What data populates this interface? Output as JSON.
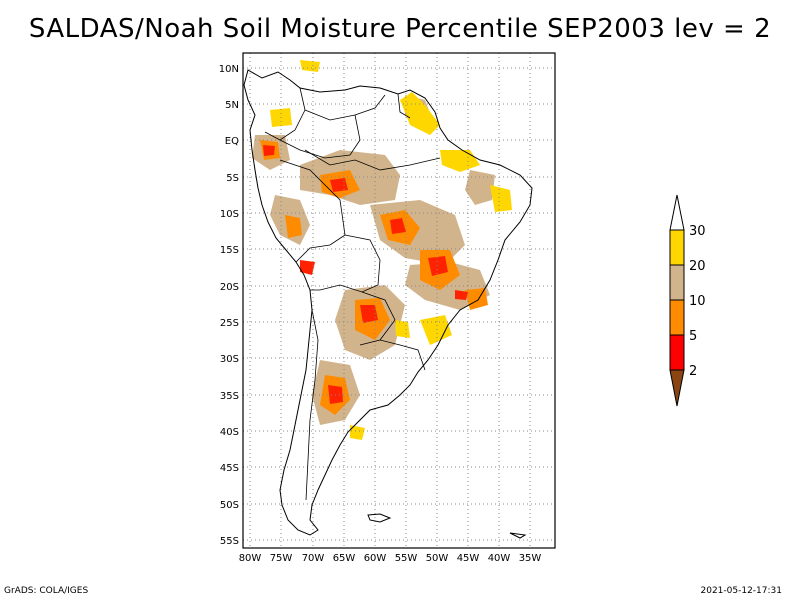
{
  "title": "SALDAS/Noah Soil Moisture Percentile SEP2003 lev = 2",
  "map": {
    "lat_labels": [
      "10N",
      "5N",
      "EQ",
      "5S",
      "10S",
      "15S",
      "20S",
      "25S",
      "30S",
      "35S",
      "40S",
      "45S",
      "50S",
      "55S"
    ],
    "lon_labels": [
      "80W",
      "75W",
      "70W",
      "65W",
      "60W",
      "55W",
      "50W",
      "45W",
      "40W",
      "35W"
    ]
  },
  "legend": {
    "labels": [
      "30",
      "20",
      "10",
      "5",
      "2"
    ],
    "colors": {
      "above30": "#ffffff",
      "20_30": "#ffd700",
      "10_20": "#d2b48c",
      "5_10": "#ff8c00",
      "2_5": "#ff0000",
      "below2": "#8b4513"
    }
  },
  "colors": {
    "dry_red": "#ff2200",
    "dark_red": "#c82000",
    "orange": "#ff8c00",
    "tan": "#d2b48c",
    "yellow": "#ffd700"
  },
  "footer": {
    "left": "GrADS: COLA/IGES",
    "right": "2021-05-12-17:31"
  }
}
